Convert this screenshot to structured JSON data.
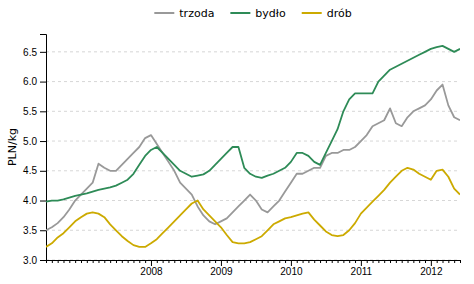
{
  "chart_data": {
    "type": "line",
    "y_label": "PLN/kg",
    "categories": [
      null,
      null,
      null,
      null,
      null,
      null,
      null,
      null,
      null,
      null,
      null,
      null,
      null,
      null,
      null,
      null,
      null,
      null,
      "2008",
      null,
      null,
      null,
      null,
      null,
      null,
      null,
      null,
      null,
      null,
      null,
      "2009",
      null,
      null,
      null,
      null,
      null,
      null,
      null,
      null,
      null,
      null,
      null,
      "2010",
      null,
      null,
      null,
      null,
      null,
      null,
      null,
      null,
      null,
      null,
      null,
      "2011",
      null,
      null,
      null,
      null,
      null,
      null,
      null,
      null,
      null,
      null,
      null,
      "2012",
      null,
      null,
      null,
      null,
      null
    ],
    "series": [
      {
        "name": "trzoda",
        "color": "#999999",
        "values": [
          3.5,
          3.55,
          3.62,
          3.72,
          3.85,
          4.0,
          4.1,
          4.2,
          4.3,
          4.62,
          4.55,
          4.5,
          4.5,
          4.6,
          4.7,
          4.8,
          4.9,
          5.05,
          5.1,
          4.95,
          4.8,
          4.65,
          4.5,
          4.3,
          4.2,
          4.1,
          3.9,
          3.75,
          3.65,
          3.6,
          3.65,
          3.7,
          3.8,
          3.9,
          4.0,
          4.1,
          4.0,
          3.85,
          3.8,
          3.9,
          4.0,
          4.15,
          4.3,
          4.45,
          4.45,
          4.5,
          4.55,
          4.55,
          4.75,
          4.8,
          4.8,
          4.85,
          4.85,
          4.9,
          5.0,
          5.1,
          5.25,
          5.3,
          5.35,
          5.55,
          5.3,
          5.25,
          5.4,
          5.5,
          5.55,
          5.6,
          5.7,
          5.85,
          5.95,
          5.6,
          5.4,
          5.35
        ]
      },
      {
        "name": "bydło",
        "color": "#2e8b57",
        "values": [
          3.98,
          4.0,
          4.0,
          4.02,
          4.05,
          4.08,
          4.1,
          4.12,
          4.15,
          4.18,
          4.2,
          4.22,
          4.25,
          4.3,
          4.35,
          4.45,
          4.6,
          4.75,
          4.85,
          4.9,
          4.8,
          4.7,
          4.6,
          4.5,
          4.45,
          4.4,
          4.42,
          4.44,
          4.5,
          4.6,
          4.7,
          4.8,
          4.9,
          4.9,
          4.55,
          4.45,
          4.4,
          4.38,
          4.42,
          4.45,
          4.5,
          4.55,
          4.65,
          4.8,
          4.8,
          4.75,
          4.65,
          4.6,
          4.8,
          5.0,
          5.2,
          5.5,
          5.7,
          5.8,
          5.8,
          5.8,
          5.8,
          6.0,
          6.1,
          6.2,
          6.25,
          6.3,
          6.35,
          6.4,
          6.45,
          6.5,
          6.55,
          6.58,
          6.6,
          6.55,
          6.5,
          6.55
        ]
      },
      {
        "name": "drób",
        "color": "#ccaa00",
        "values": [
          3.22,
          3.28,
          3.38,
          3.45,
          3.55,
          3.65,
          3.72,
          3.78,
          3.8,
          3.78,
          3.72,
          3.6,
          3.5,
          3.4,
          3.32,
          3.25,
          3.22,
          3.22,
          3.28,
          3.35,
          3.45,
          3.55,
          3.65,
          3.75,
          3.85,
          3.95,
          4.0,
          3.85,
          3.75,
          3.65,
          3.55,
          3.42,
          3.3,
          3.28,
          3.28,
          3.3,
          3.35,
          3.4,
          3.5,
          3.6,
          3.65,
          3.7,
          3.72,
          3.75,
          3.78,
          3.8,
          3.68,
          3.58,
          3.48,
          3.42,
          3.4,
          3.42,
          3.5,
          3.62,
          3.78,
          3.88,
          3.98,
          4.08,
          4.18,
          4.3,
          4.4,
          4.5,
          4.55,
          4.52,
          4.45,
          4.4,
          4.35,
          4.5,
          4.52,
          4.4,
          4.2,
          4.1
        ]
      }
    ],
    "ylim": [
      3.0,
      6.8
    ],
    "yticks": [
      {
        "value": 3.0,
        "label": "3.0"
      },
      3.5,
      {
        "value": 4.0,
        "label": "4.0"
      },
      4.5,
      {
        "value": 5.0,
        "label": "5.0"
      },
      5.5,
      {
        "value": 6.0,
        "label": "6.0"
      },
      6.5
    ],
    "grid": true,
    "legend": "top"
  }
}
